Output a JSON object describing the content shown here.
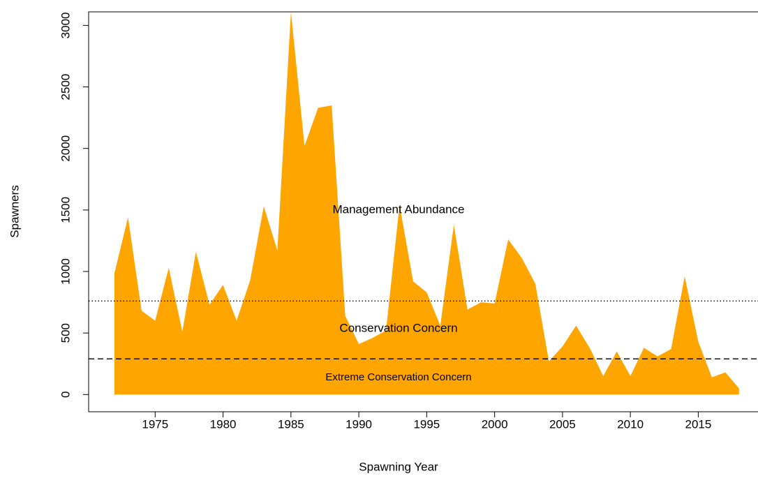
{
  "chart_data": {
    "type": "area",
    "x_label": "Spawning Year",
    "y_label": "Spawners",
    "x": [
      1972,
      1973,
      1974,
      1975,
      1976,
      1977,
      1978,
      1979,
      1980,
      1981,
      1982,
      1983,
      1984,
      1985,
      1986,
      1987,
      1988,
      1989,
      1990,
      1991,
      1992,
      1993,
      1994,
      1995,
      1996,
      1997,
      1998,
      1999,
      2000,
      2001,
      2002,
      2003,
      2004,
      2005,
      2006,
      2007,
      2008,
      2009,
      2010,
      2011,
      2012,
      2013,
      2014,
      2015,
      2016,
      2017,
      2018
    ],
    "values": [
      985,
      1440,
      680,
      600,
      1030,
      510,
      1160,
      730,
      890,
      600,
      930,
      1530,
      1170,
      3110,
      2020,
      2330,
      2350,
      640,
      410,
      460,
      520,
      1540,
      920,
      830,
      560,
      1380,
      690,
      750,
      740,
      1260,
      1110,
      900,
      270,
      390,
      560,
      380,
      150,
      350,
      150,
      380,
      310,
      370,
      960,
      430,
      140,
      180,
      50
    ],
    "color": "#ffa500",
    "xlim": [
      1970.1,
      2019.4
    ],
    "ylim": [
      -140,
      3110
    ],
    "xticks": [
      1975,
      1980,
      1985,
      1990,
      1995,
      2000,
      2005,
      2010,
      2015
    ],
    "yticks": [
      0,
      500,
      1000,
      1500,
      2000,
      2500,
      3000
    ],
    "reference_lines": [
      {
        "value": 760,
        "style": "dotted"
      },
      {
        "value": 290,
        "style": "dashed"
      }
    ],
    "annotations": [
      "Management Abundance",
      "Conservation Concern",
      "Extreme Conservation Concern"
    ]
  }
}
